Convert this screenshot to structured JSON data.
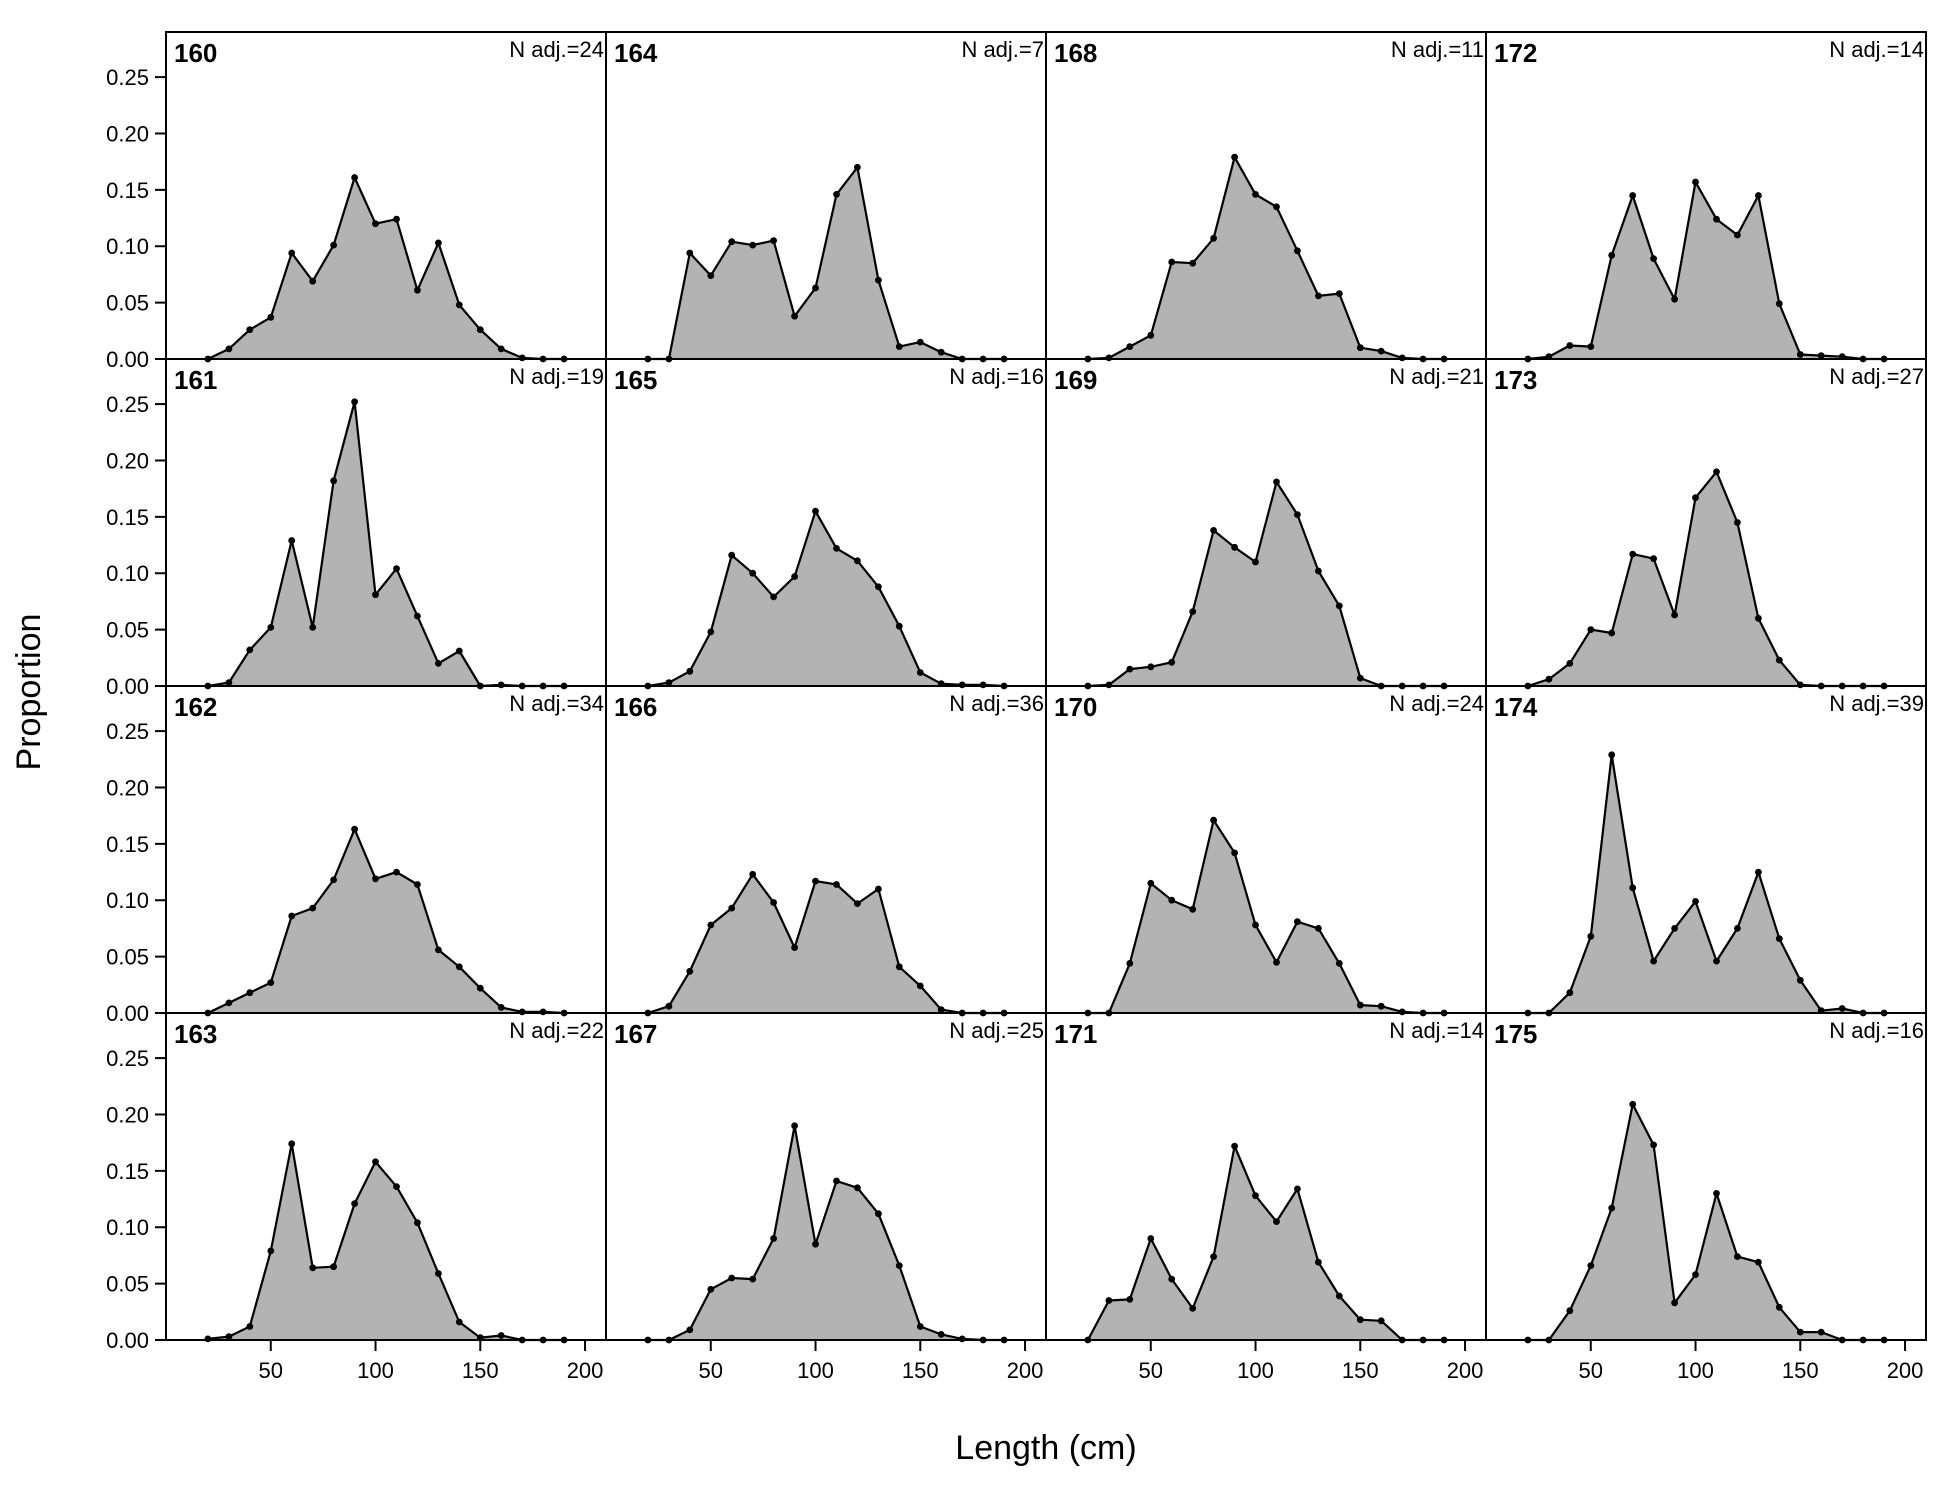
{
  "chart_data": {
    "type": "area",
    "xlabel": "Length (cm)",
    "ylabel": "Proportion",
    "xlim": [
      0,
      210
    ],
    "ylim": [
      0,
      0.29
    ],
    "x_ticks": [
      50,
      100,
      150,
      200
    ],
    "y_ticks": [
      "0.00",
      "0.05",
      "0.10",
      "0.15",
      "0.20",
      "0.25"
    ],
    "grid": false,
    "fill_color": "#b3b3b3",
    "line_color": "#000000",
    "layout": {
      "rows": 4,
      "cols": 4,
      "order": "column-major"
    },
    "x": [
      20,
      30,
      40,
      50,
      60,
      70,
      80,
      90,
      100,
      110,
      120,
      130,
      140,
      150,
      160,
      170,
      180,
      190
    ],
    "panels": [
      {
        "id": "160",
        "n_label": "N adj.=24",
        "values": [
          0,
          0.009,
          0.026,
          0.037,
          0.094,
          0.069,
          0.101,
          0.161,
          0.12,
          0.124,
          0.061,
          0.103,
          0.048,
          0.026,
          0.009,
          0.001,
          0,
          0
        ]
      },
      {
        "id": "161",
        "n_label": "N adj.=19",
        "values": [
          0,
          0.003,
          0.032,
          0.052,
          0.129,
          0.052,
          0.182,
          0.252,
          0.081,
          0.104,
          0.062,
          0.02,
          0.031,
          0,
          0.001,
          0,
          0,
          0
        ]
      },
      {
        "id": "162",
        "n_label": "N adj.=34",
        "values": [
          0,
          0.009,
          0.018,
          0.027,
          0.086,
          0.093,
          0.118,
          0.163,
          0.119,
          0.125,
          0.114,
          0.056,
          0.041,
          0.022,
          0.005,
          0.001,
          0.001,
          0
        ]
      },
      {
        "id": "163",
        "n_label": "N adj.=22",
        "values": [
          0.001,
          0.003,
          0.012,
          0.079,
          0.174,
          0.064,
          0.065,
          0.121,
          0.158,
          0.136,
          0.104,
          0.059,
          0.016,
          0.002,
          0.004,
          0,
          0,
          0
        ]
      },
      {
        "id": "164",
        "n_label": "N adj.=7",
        "values": [
          0,
          0,
          0.094,
          0.074,
          0.104,
          0.101,
          0.105,
          0.038,
          0.063,
          0.146,
          0.17,
          0.07,
          0.011,
          0.015,
          0.006,
          0,
          0,
          0
        ]
      },
      {
        "id": "165",
        "n_label": "N adj.=16",
        "values": [
          0,
          0.003,
          0.013,
          0.048,
          0.116,
          0.1,
          0.079,
          0.097,
          0.155,
          0.122,
          0.111,
          0.088,
          0.053,
          0.012,
          0.002,
          0.001,
          0.001,
          0
        ]
      },
      {
        "id": "166",
        "n_label": "N adj.=36",
        "values": [
          0,
          0.006,
          0.037,
          0.078,
          0.093,
          0.123,
          0.098,
          0.058,
          0.117,
          0.114,
          0.097,
          0.11,
          0.041,
          0.024,
          0.003,
          0,
          0,
          0
        ]
      },
      {
        "id": "167",
        "n_label": "N adj.=25",
        "values": [
          0,
          0,
          0.009,
          0.045,
          0.055,
          0.054,
          0.09,
          0.19,
          0.085,
          0.141,
          0.135,
          0.112,
          0.066,
          0.012,
          0.005,
          0.001,
          0,
          0
        ]
      },
      {
        "id": "168",
        "n_label": "N adj.=11",
        "values": [
          0,
          0.001,
          0.011,
          0.021,
          0.086,
          0.085,
          0.107,
          0.179,
          0.146,
          0.135,
          0.096,
          0.056,
          0.058,
          0.01,
          0.007,
          0.001,
          0,
          0
        ]
      },
      {
        "id": "169",
        "n_label": "N adj.=21",
        "values": [
          0,
          0.001,
          0.015,
          0.017,
          0.021,
          0.066,
          0.138,
          0.123,
          0.11,
          0.181,
          0.152,
          0.102,
          0.071,
          0.007,
          0,
          0,
          0,
          0
        ]
      },
      {
        "id": "170",
        "n_label": "N adj.=24",
        "values": [
          0,
          0,
          0.044,
          0.115,
          0.1,
          0.092,
          0.171,
          0.142,
          0.078,
          0.045,
          0.081,
          0.075,
          0.044,
          0.007,
          0.006,
          0.001,
          0,
          0
        ]
      },
      {
        "id": "171",
        "n_label": "N adj.=14",
        "values": [
          0,
          0.035,
          0.036,
          0.09,
          0.054,
          0.028,
          0.074,
          0.172,
          0.128,
          0.105,
          0.134,
          0.069,
          0.039,
          0.018,
          0.017,
          0,
          0,
          0
        ]
      },
      {
        "id": "172",
        "n_label": "N adj.=14",
        "values": [
          0,
          0.002,
          0.012,
          0.011,
          0.092,
          0.145,
          0.089,
          0.053,
          0.157,
          0.124,
          0.11,
          0.145,
          0.049,
          0.004,
          0.003,
          0.002,
          0,
          0
        ]
      },
      {
        "id": "173",
        "n_label": "N adj.=27",
        "values": [
          0,
          0.006,
          0.02,
          0.05,
          0.047,
          0.117,
          0.113,
          0.063,
          0.167,
          0.19,
          0.145,
          0.06,
          0.023,
          0.001,
          0,
          0,
          0,
          0
        ]
      },
      {
        "id": "174",
        "n_label": "N adj.=39",
        "values": [
          0,
          0,
          0.018,
          0.068,
          0.229,
          0.111,
          0.046,
          0.075,
          0.099,
          0.046,
          0.075,
          0.125,
          0.066,
          0.029,
          0.002,
          0.004,
          0,
          0
        ]
      },
      {
        "id": "175",
        "n_label": "N adj.=16",
        "values": [
          0,
          0,
          0.026,
          0.066,
          0.117,
          0.209,
          0.173,
          0.033,
          0.058,
          0.13,
          0.074,
          0.069,
          0.029,
          0.007,
          0.007,
          0,
          0,
          0
        ]
      }
    ]
  }
}
